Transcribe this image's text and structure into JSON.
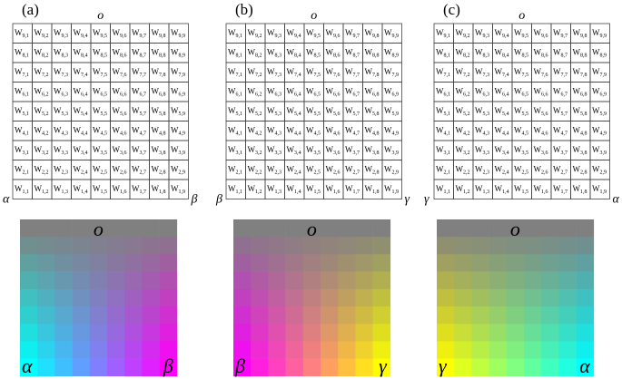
{
  "cell_symbol": "W",
  "grid": {
    "rows": [
      [
        "9,1",
        "9,2",
        "9,3",
        "9,4",
        "9,5",
        "9,6",
        "9,7",
        "9,8",
        "9,9"
      ],
      [
        "8,1",
        "8,2",
        "8,3",
        "8,4",
        "8,5",
        "8,6",
        "8,7",
        "8,8",
        "8,9"
      ],
      [
        "7,1",
        "7,2",
        "7,3",
        "7,4",
        "7,5",
        "7,6",
        "7,7",
        "7,8",
        "7,9"
      ],
      [
        "6,1",
        "6,2",
        "6,3",
        "6,4",
        "6,5",
        "6,6",
        "6,7",
        "6,8",
        "6,9"
      ],
      [
        "5,1",
        "5,2",
        "5,3",
        "5,4",
        "5,5",
        "5,6",
        "5,7",
        "5,8",
        "5,9"
      ],
      [
        "4,1",
        "4,2",
        "4,3",
        "4,4",
        "4,5",
        "4,6",
        "4,7",
        "4,8",
        "4,9"
      ],
      [
        "3,1",
        "3,2",
        "3,3",
        "3,4",
        "3,5",
        "3,6",
        "3,7",
        "3,8",
        "3,9"
      ],
      [
        "2,1",
        "2,2",
        "2,3",
        "2,4",
        "2,5",
        "2,6",
        "2,7",
        "2,8",
        "2,9"
      ],
      [
        "1,1",
        "1,2",
        "1,3",
        "1,4",
        "1,5",
        "1,6",
        "1,7",
        "1,8",
        "1,9"
      ]
    ]
  },
  "panels": [
    {
      "label": "(a)",
      "top": "o",
      "left": "α",
      "right": "β",
      "top_color": "#808080",
      "left_color": "#00ffff",
      "right_color": "#ff00ff"
    },
    {
      "label": "(b)",
      "top": "o",
      "left": "β",
      "right": "γ",
      "top_color": "#808080",
      "left_color": "#ff00ff",
      "right_color": "#ffff00"
    },
    {
      "label": "(c)",
      "top": "o",
      "left": "γ",
      "right": "α",
      "top_color": "#808080",
      "left_color": "#ffff00",
      "right_color": "#00ffff"
    }
  ]
}
